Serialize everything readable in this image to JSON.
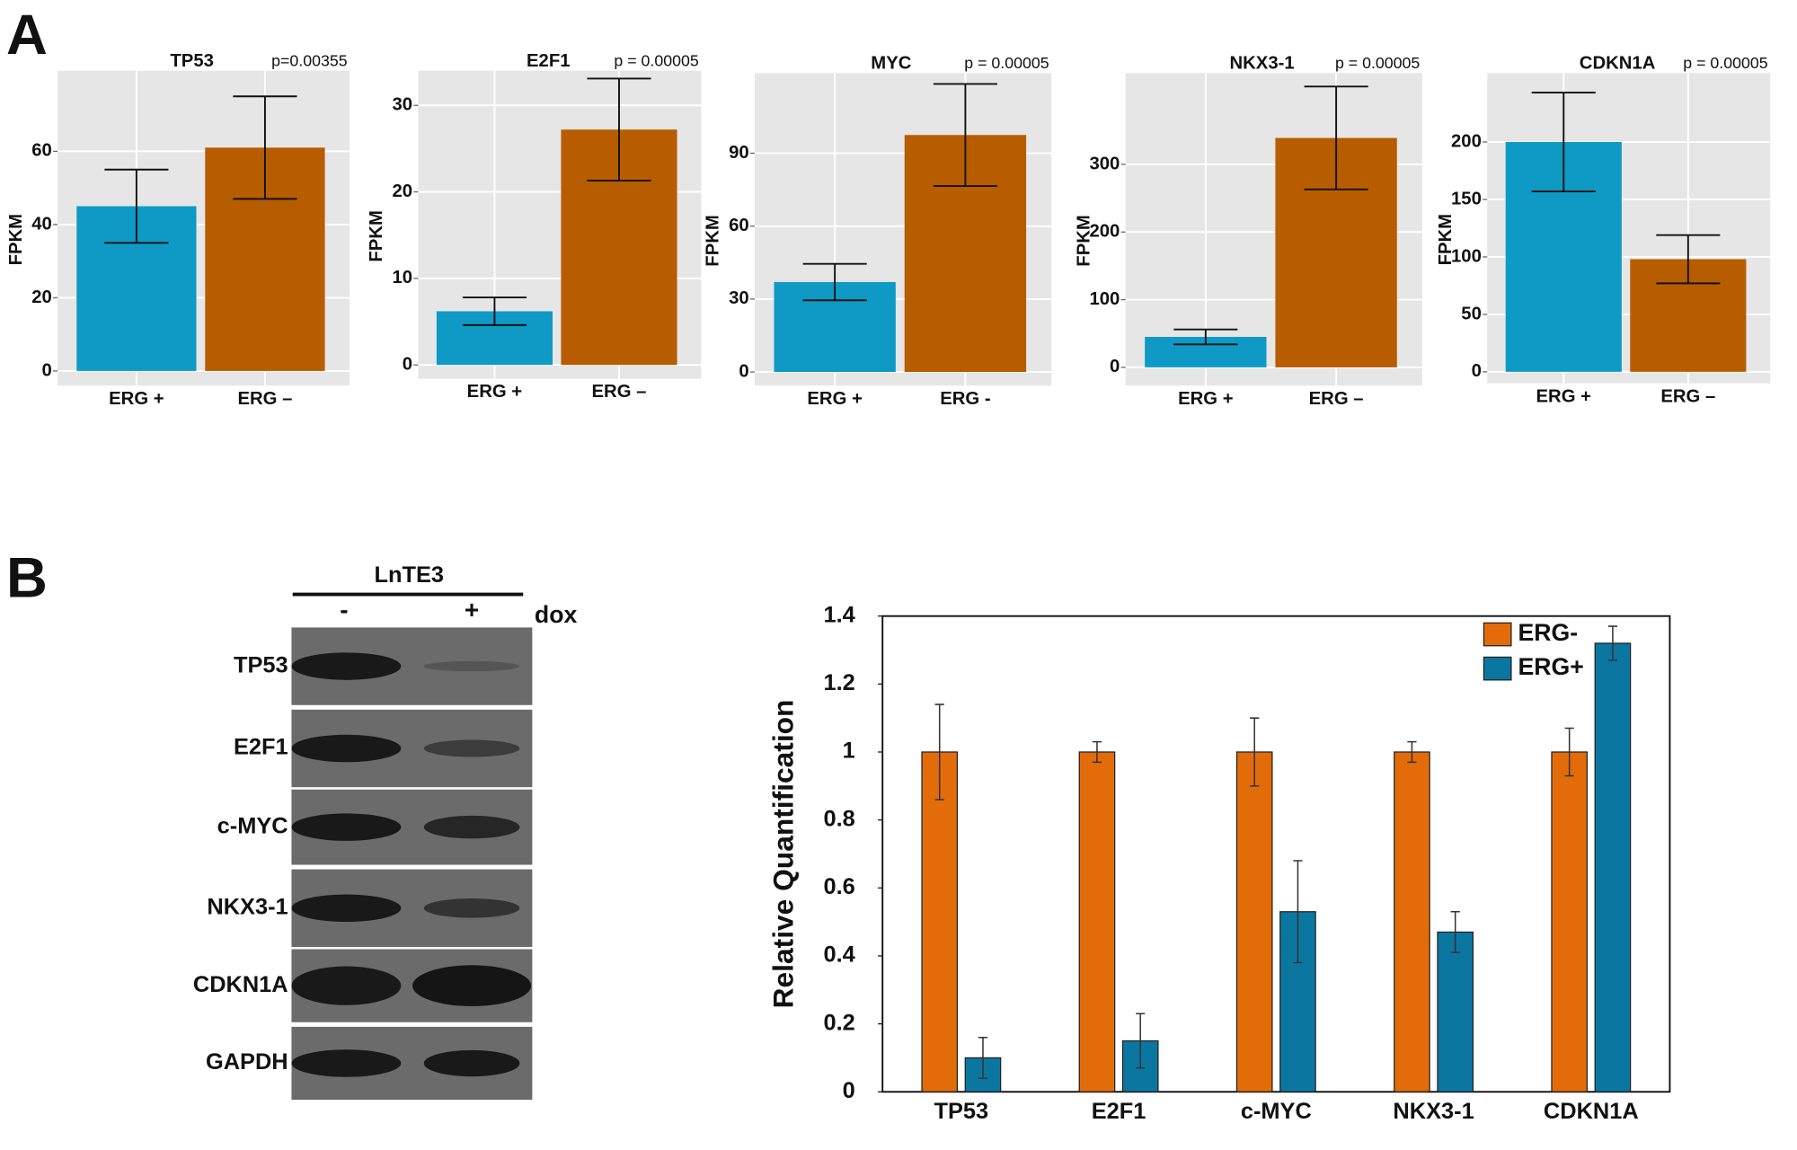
{
  "panel_labels": [
    "A",
    "B"
  ],
  "western_blot": {
    "header": "LnTE3",
    "lanes": [
      "-",
      "+"
    ],
    "treatment": "dox",
    "rows": [
      "TP53",
      "E2F1",
      "c-MYC",
      "NKX3-1",
      "CDKN1A",
      "GAPDH"
    ]
  },
  "chart_data": [
    {
      "type": "bar",
      "title": "TP53",
      "annotation": "p=0.00355",
      "ylabel": "FPKM",
      "categories": [
        "ERG +",
        "ERG –"
      ],
      "values": [
        45,
        61
      ],
      "errors": [
        10,
        14
      ],
      "colors": [
        "#0e9ac4",
        "#b85c00"
      ],
      "ylim": [
        -4,
        82
      ],
      "yticks": [
        0,
        20,
        40,
        60
      ],
      "grid": true
    },
    {
      "type": "bar",
      "title": "E2F1",
      "annotation": "p = 0.00005",
      "ylabel": "FPKM",
      "categories": [
        "ERG +",
        "ERG –"
      ],
      "values": [
        6.2,
        27.2
      ],
      "errors": [
        1.6,
        5.9
      ],
      "colors": [
        "#0e9ac4",
        "#b85c00"
      ],
      "ylim": [
        -1.6,
        34
      ],
      "yticks": [
        0,
        10,
        20,
        30
      ],
      "grid": true
    },
    {
      "type": "bar",
      "title": "MYC",
      "annotation": "p = 0.00005",
      "ylabel": "FPKM",
      "categories": [
        "ERG +",
        "ERG -"
      ],
      "values": [
        37,
        97.5
      ],
      "errors": [
        7.5,
        21
      ],
      "colors": [
        "#0e9ac4",
        "#b85c00"
      ],
      "ylim": [
        -5.6,
        123
      ],
      "yticks": [
        0,
        30,
        60,
        90
      ],
      "grid": true
    },
    {
      "type": "bar",
      "title": "NKX3-1",
      "annotation": "p = 0.00005",
      "ylabel": "FPKM",
      "categories": [
        "ERG +",
        "ERG –"
      ],
      "values": [
        45,
        339
      ],
      "errors": [
        11,
        76
      ],
      "colors": [
        "#0e9ac4",
        "#b85c00"
      ],
      "ylim": [
        -27,
        435
      ],
      "yticks": [
        0,
        100,
        200,
        300
      ],
      "grid": true
    },
    {
      "type": "bar",
      "title": "CDKN1A",
      "annotation": "p = 0.00005",
      "ylabel": "FPKM",
      "categories": [
        "ERG +",
        "ERG –"
      ],
      "values": [
        200,
        98
      ],
      "errors": [
        43,
        21
      ],
      "colors": [
        "#0e9ac4",
        "#b85c00"
      ],
      "ylim": [
        -10,
        260
      ],
      "yticks": [
        0,
        50,
        100,
        150,
        200
      ],
      "grid": true
    },
    {
      "type": "grouped_bar",
      "ylabel": "Relative Quantification",
      "categories": [
        "TP53",
        "E2F1",
        "c-MYC",
        "NKX3-1",
        "CDKN1A"
      ],
      "series": [
        {
          "name": "ERG-",
          "color": "#e36c0a",
          "values": [
            1,
            1,
            1,
            1,
            1
          ],
          "errors": [
            0.14,
            0.03,
            0.1,
            0.03,
            0.07
          ]
        },
        {
          "name": "ERG+",
          "color": "#0b77a1",
          "values": [
            0.1,
            0.15,
            0.53,
            0.47,
            1.32
          ],
          "errors": [
            0.06,
            0.08,
            0.15,
            0.06,
            0.05
          ]
        }
      ],
      "ylim": [
        0,
        1.4
      ],
      "yticks": [
        0,
        0.2,
        0.4,
        0.6,
        0.8,
        1,
        1.2,
        1.4
      ],
      "legend": "upper right"
    }
  ]
}
